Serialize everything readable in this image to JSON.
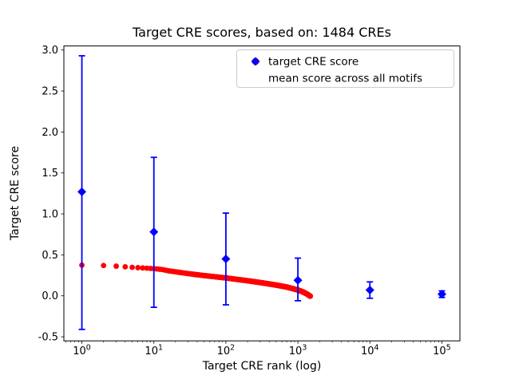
{
  "chart_data": {
    "type": "scatter",
    "title": "Target CRE scores, based on: 1484 CREs",
    "xlabel": "Target CRE rank (log)",
    "ylabel": "Target CRE score",
    "x_scale": "log",
    "xlim_log10": [
      -0.25,
      5.25
    ],
    "ylim": [
      -0.55,
      3.05
    ],
    "yticks": [
      -0.5,
      0.0,
      0.5,
      1.0,
      1.5,
      2.0,
      2.5,
      3.0
    ],
    "xticks": [
      {
        "value": 1,
        "label": "10^0"
      },
      {
        "value": 10,
        "label": "10^1"
      },
      {
        "value": 100,
        "label": "10^2"
      },
      {
        "value": 1000,
        "label": "10^3"
      },
      {
        "value": 10000,
        "label": "10^4"
      },
      {
        "value": 100000,
        "label": "10^5"
      }
    ],
    "grid": false,
    "legend_position": "upper right",
    "series": [
      {
        "name": "target CRE score",
        "color": "#ff0000",
        "marker": "circle",
        "n_points": 1484,
        "note": "dense descending scatter of 1484 ranked CRE scores",
        "curve_samples": [
          [
            1,
            0.375
          ],
          [
            2,
            0.37
          ],
          [
            3,
            0.362
          ],
          [
            4,
            0.354
          ],
          [
            5,
            0.348
          ],
          [
            7,
            0.34
          ],
          [
            10,
            0.332
          ],
          [
            13,
            0.321
          ],
          [
            16,
            0.305
          ],
          [
            20,
            0.293
          ],
          [
            30,
            0.271
          ],
          [
            50,
            0.247
          ],
          [
            70,
            0.233
          ],
          [
            100,
            0.218
          ],
          [
            150,
            0.198
          ],
          [
            200,
            0.184
          ],
          [
            300,
            0.162
          ],
          [
            500,
            0.131
          ],
          [
            700,
            0.107
          ],
          [
            1000,
            0.071
          ],
          [
            1200,
            0.044
          ],
          [
            1350,
            0.02
          ],
          [
            1484,
            -0.005
          ]
        ]
      },
      {
        "name": "mean score across all motifs",
        "color": "#0000ff",
        "marker": "diamond",
        "points": [
          {
            "x": 1,
            "y": 1.27,
            "y_min": -0.41,
            "y_max": 2.93
          },
          {
            "x": 10,
            "y": 0.78,
            "y_min": -0.14,
            "y_max": 1.69
          },
          {
            "x": 100,
            "y": 0.45,
            "y_min": -0.11,
            "y_max": 1.01
          },
          {
            "x": 1000,
            "y": 0.19,
            "y_min": -0.06,
            "y_max": 0.46
          },
          {
            "x": 10000,
            "y": 0.07,
            "y_min": -0.03,
            "y_max": 0.17
          },
          {
            "x": 100000,
            "y": 0.02,
            "y_min": -0.02,
            "y_max": 0.06
          }
        ]
      }
    ]
  }
}
